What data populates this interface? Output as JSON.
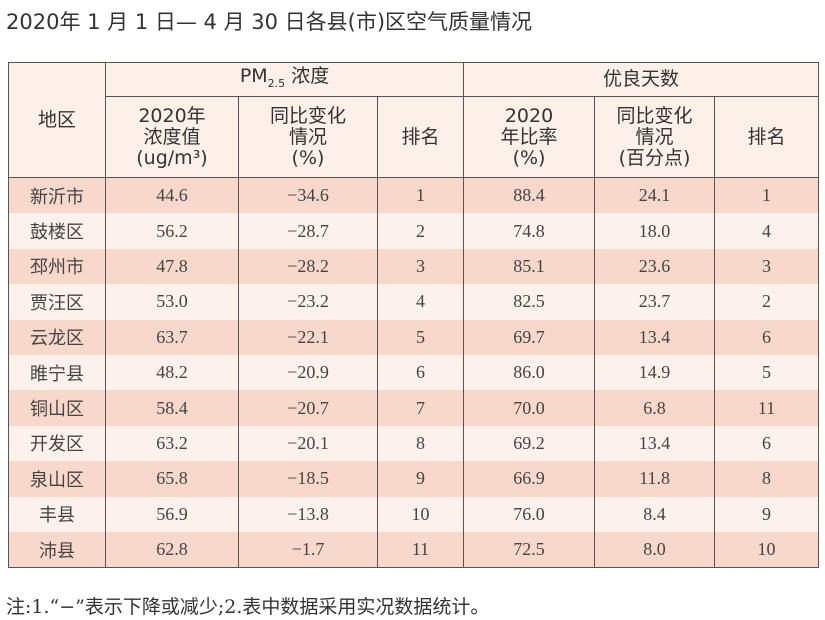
{
  "title": "2020年 1 月 1 日— 4 月 30 日各县(市)区空气质量情况",
  "header": {
    "region": "地区",
    "pm_group": "PM",
    "pm_sub": "2.5",
    "pm_suffix": " 浓度",
    "pm_value": [
      "2020年",
      "浓度值",
      "(ug/m³)"
    ],
    "pm_change": [
      "同比变化",
      "情况",
      "(%)"
    ],
    "pm_rank": "排名",
    "good_group": "优良天数",
    "good_rate": [
      "2020",
      "年比率",
      "(%)"
    ],
    "good_change": [
      "同比变化",
      "情况",
      "(百分点)"
    ],
    "good_rank": "排名"
  },
  "rows": [
    [
      "新沂市",
      "44.6",
      "−34.6",
      "1",
      "88.4",
      "24.1",
      "1"
    ],
    [
      "鼓楼区",
      "56.2",
      "−28.7",
      "2",
      "74.8",
      "18.0",
      "4"
    ],
    [
      "邳州市",
      "47.8",
      "−28.2",
      "3",
      "85.1",
      "23.6",
      "3"
    ],
    [
      "贾汪区",
      "53.0",
      "−23.2",
      "4",
      "82.5",
      "23.7",
      "2"
    ],
    [
      "云龙区",
      "63.7",
      "−22.1",
      "5",
      "69.7",
      "13.4",
      "6"
    ],
    [
      "睢宁县",
      "48.2",
      "−20.9",
      "6",
      "86.0",
      "14.9",
      "5"
    ],
    [
      "铜山区",
      "58.4",
      "−20.7",
      "7",
      "70.0",
      "6.8",
      "11"
    ],
    [
      "开发区",
      "63.2",
      "−20.1",
      "8",
      "69.2",
      "13.4",
      "6"
    ],
    [
      "泉山区",
      "65.8",
      "−18.5",
      "9",
      "66.9",
      "11.8",
      "8"
    ],
    [
      "丰县",
      "56.9",
      "−13.8",
      "10",
      "76.0",
      "8.4",
      "9"
    ],
    [
      "沛县",
      "62.8",
      "−1.7",
      "11",
      "72.5",
      "8.0",
      "10"
    ]
  ],
  "note": "注:1.“−”表示下降或减少;2.表中数据采用实况数据统计。",
  "colors": {
    "row_odd": "#f8d8cb",
    "row_even": "#fdf1ec",
    "header": "#fcf0e9",
    "border": "#555555"
  }
}
